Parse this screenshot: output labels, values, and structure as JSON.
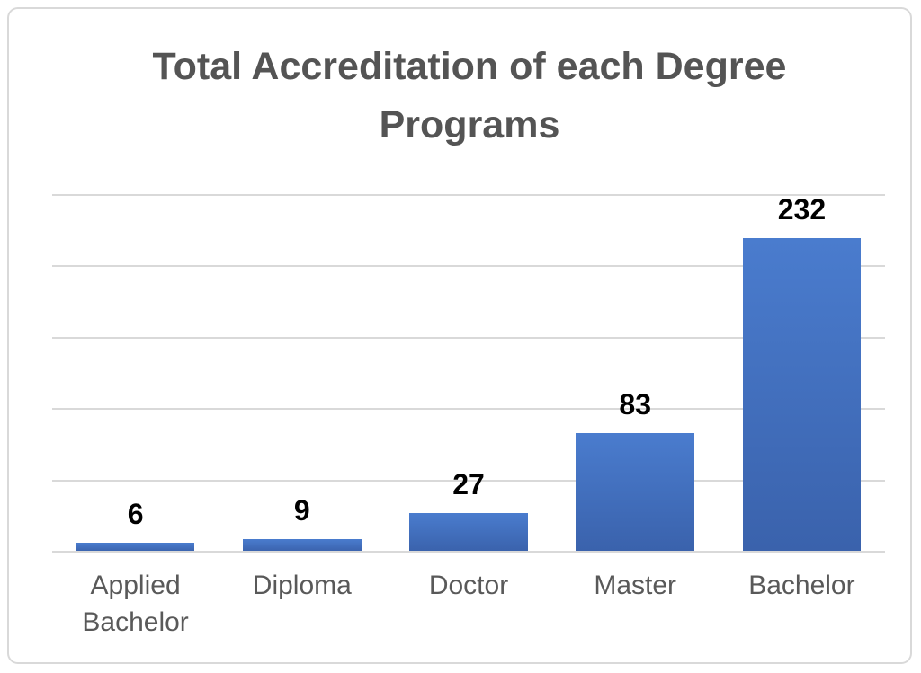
{
  "chart_data": {
    "type": "bar",
    "title": "Total Accreditation of each Degree Programs",
    "categories": [
      "Applied Bachelor",
      "Diploma",
      "Doctor",
      "Master",
      "Bachelor"
    ],
    "values": [
      6,
      9,
      27,
      83,
      232
    ],
    "data_labels": [
      "6",
      "9",
      "27",
      "83",
      "232"
    ],
    "xlabel": "",
    "ylabel": "",
    "ylim": [
      0,
      250
    ],
    "gridline_step": 50,
    "grid": true,
    "legend": false,
    "y_tick_labels_visible": false
  },
  "colors": {
    "bar_top": "#4a7cce",
    "bar_bottom": "#3a62ac",
    "gridline": "#d9d9d9",
    "axis_line": "#d9d9d9",
    "frame_border": "#d9d9d9",
    "background": "#ffffff",
    "title_text": "#545454",
    "category_text": "#595959",
    "value_label_text": "#000000"
  }
}
